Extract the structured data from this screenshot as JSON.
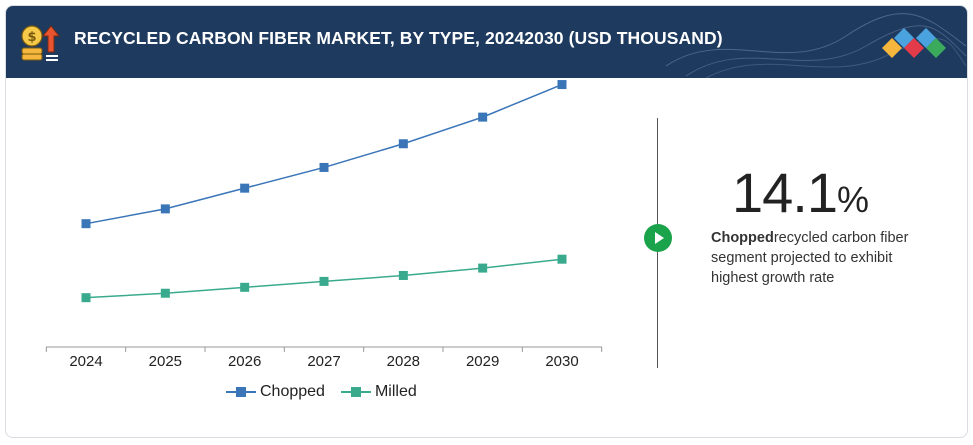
{
  "header": {
    "title": "RECYCLED CARBON FIBER MARKET, BY TYPE, 20242030 (USD THOUSAND)"
  },
  "colors": {
    "header_bg": "#1e3a5f",
    "chopped": "#3a75b8",
    "milled": "#3aaa8e",
    "play": "#1aa34a"
  },
  "icons": {
    "header": "money-growth-icon",
    "logo": "diamond-cluster-logo",
    "play": "play-icon"
  },
  "stat": {
    "value": "14.1",
    "unit": "%",
    "highlight": "Chopped",
    "description": "recycled carbon fiber segment projected to exhibit highest growth rate"
  },
  "chart_data": {
    "type": "line",
    "title": "RECYCLED CARBON FIBER MARKET, BY TYPE, 20242030 (USD THOUSAND)",
    "xlabel": "",
    "ylabel": "",
    "categories": [
      "2024",
      "2025",
      "2026",
      "2027",
      "2028",
      "2029",
      "2030"
    ],
    "ylim": [
      0,
      100
    ],
    "grid": false,
    "legend": "bottom-center",
    "series": [
      {
        "name": "Chopped",
        "values": [
          42,
          47,
          54,
          61,
          69,
          78,
          89
        ]
      },
      {
        "name": "Milled",
        "values": [
          17,
          18.5,
          20.5,
          22.5,
          24.5,
          27,
          30
        ]
      }
    ]
  }
}
